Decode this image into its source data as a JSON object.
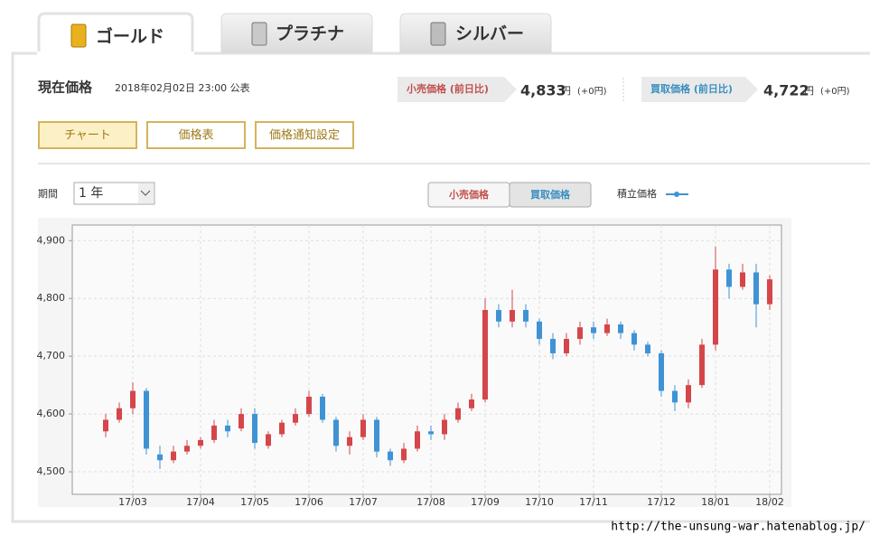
{
  "ui": {
    "tabs": [
      "ゴールド",
      "プラチナ",
      "シルバー"
    ],
    "header": {
      "title": "現在価格",
      "published": "2018年02月02日 23:00 公表",
      "retail": {
        "label": "小売価格 (前日比)",
        "price": "4,833",
        "unit": "円",
        "change": "(+0円)"
      },
      "buyback": {
        "label": "買取価格 (前日比)",
        "price": "4,722",
        "unit": "円",
        "change": "(+0円)"
      }
    },
    "buttons": [
      "チャート",
      "価格表",
      "価格通知設定"
    ],
    "period_label": "期間",
    "period_value": "1 年",
    "toggle": [
      "小売価格",
      "買取価格"
    ],
    "legend": "積立価格",
    "watermark": "http://the-unsung-war.hatenablog.jp/"
  },
  "chart_data": {
    "type": "candlestick",
    "categories": [
      null,
      null,
      "17/03",
      null,
      null,
      null,
      null,
      "17/04",
      null,
      null,
      null,
      "17/05",
      null,
      null,
      null,
      "17/06",
      null,
      null,
      null,
      "17/07",
      null,
      null,
      null,
      null,
      "17/08",
      null,
      null,
      null,
      "17/09",
      null,
      null,
      null,
      "17/10",
      null,
      null,
      null,
      "17/11",
      null,
      null,
      null,
      null,
      "17/12",
      null,
      null,
      null,
      "18/01",
      null,
      null,
      null,
      "18/02"
    ],
    "open": [
      4570,
      4590,
      4610,
      4640,
      4530,
      4520,
      4535,
      4545,
      4555,
      4580,
      4575,
      4600,
      4545,
      4565,
      4585,
      4600,
      4630,
      4590,
      4545,
      4560,
      4590,
      4535,
      4520,
      4540,
      4570,
      4565,
      4590,
      4610,
      4625,
      4780,
      4760,
      4780,
      4760,
      4730,
      4705,
      4730,
      4750,
      4740,
      4755,
      4740,
      4720,
      4705,
      4640,
      4620,
      4650,
      4720,
      4850,
      4820,
      4845,
      4790
    ],
    "close": [
      4590,
      4610,
      4640,
      4540,
      4520,
      4535,
      4545,
      4555,
      4580,
      4570,
      4600,
      4550,
      4565,
      4585,
      4600,
      4630,
      4590,
      4545,
      4560,
      4590,
      4535,
      4520,
      4540,
      4570,
      4565,
      4590,
      4610,
      4625,
      4780,
      4760,
      4780,
      4760,
      4730,
      4705,
      4730,
      4750,
      4740,
      4755,
      4740,
      4720,
      4705,
      4640,
      4620,
      4650,
      4720,
      4850,
      4820,
      4845,
      4790,
      4833
    ],
    "high": [
      4600,
      4620,
      4655,
      4645,
      4545,
      4545,
      4555,
      4560,
      4590,
      4590,
      4610,
      4610,
      4570,
      4590,
      4610,
      4640,
      4635,
      4595,
      4570,
      4600,
      4595,
      4540,
      4550,
      4580,
      4580,
      4600,
      4620,
      4635,
      4800,
      4790,
      4815,
      4790,
      4765,
      4740,
      4740,
      4760,
      4760,
      4765,
      4760,
      4745,
      4725,
      4710,
      4650,
      4660,
      4730,
      4890,
      4860,
      4860,
      4860,
      4840
    ],
    "low": [
      4560,
      4585,
      4600,
      4530,
      4505,
      4515,
      4530,
      4540,
      4550,
      4560,
      4570,
      4540,
      4540,
      4560,
      4580,
      4595,
      4585,
      4535,
      4530,
      4555,
      4525,
      4510,
      4515,
      4535,
      4555,
      4555,
      4585,
      4605,
      4620,
      4750,
      4750,
      4750,
      4720,
      4695,
      4700,
      4720,
      4730,
      4735,
      4730,
      4710,
      4700,
      4630,
      4605,
      4610,
      4645,
      4710,
      4800,
      4815,
      4750,
      4780
    ],
    "up_color": "#d4464a",
    "down_color": "#3f93d4",
    "ylim": [
      4461,
      4927
    ],
    "yticks": [
      {
        "value": 4500,
        "label": "4,500"
      },
      {
        "value": 4600,
        "label": "4,600"
      },
      {
        "value": 4700,
        "label": "4,700"
      },
      {
        "value": 4800,
        "label": "4,800"
      },
      {
        "value": 4900,
        "label": "4,900"
      }
    ],
    "grid": true
  }
}
